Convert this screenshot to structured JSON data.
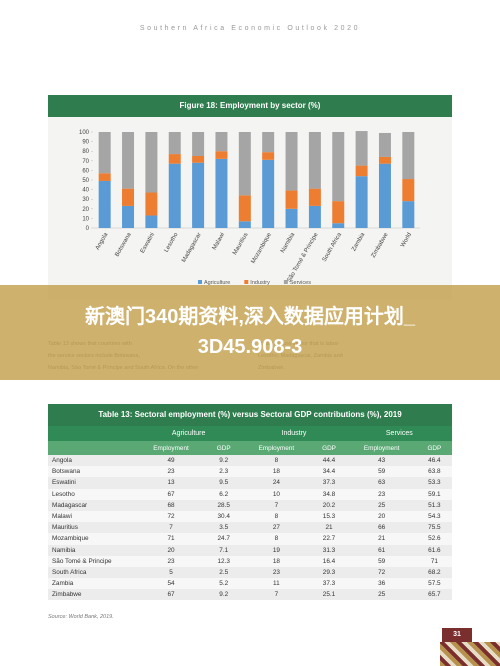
{
  "header": {
    "title": "Southern Africa Economic Outlook 2020"
  },
  "chart_data": {
    "type": "bar",
    "stacked": true,
    "title": "Figure 18: Employment by sector (%)",
    "categories": [
      "Angola",
      "Botswana",
      "Eswatini",
      "Lesotho",
      "Madagascar",
      "Malawi",
      "Mauritius",
      "Mozambique",
      "Namibia",
      "São Tomé & Principe",
      "South Africa",
      "Zambia",
      "Zimbabwe",
      "World"
    ],
    "series": [
      {
        "name": "Agriculture",
        "color": "#5b9bd5",
        "values": [
          49,
          23,
          13,
          67,
          68,
          72,
          7,
          71,
          20,
          23,
          5,
          54,
          67,
          28
        ]
      },
      {
        "name": "Industry",
        "color": "#ed7d31",
        "values": [
          8,
          18,
          24,
          10,
          7,
          8,
          27,
          8,
          19,
          18,
          23,
          11,
          7,
          23
        ]
      },
      {
        "name": "Services",
        "color": "#a5a5a5",
        "values": [
          43,
          59,
          63,
          23,
          25,
          20,
          66,
          21,
          61,
          59,
          72,
          36,
          25,
          49
        ]
      }
    ],
    "ylim": [
      0,
      100
    ],
    "yticks": [
      0,
      10,
      20,
      30,
      40,
      50,
      60,
      70,
      80,
      90,
      100
    ],
    "grid": false,
    "legend": "bottom"
  },
  "body_text": {
    "left": [
      "Table 13 shows that countries with",
      "the service sectors include Botswana,",
      "Namibia, São Tomé & Príncipe and South Africa. On the other"
    ],
    "right": [
      "an agriculture sector that is labor-",
      "Lesotho, Madagascar, Zambia and",
      "Zimbabwe."
    ]
  },
  "banner": {
    "lines": [
      "新澳门340期资料,深入数据应用计划_",
      "3D45.908-3"
    ]
  },
  "table": {
    "title": "Table 13: Sectoral employment (%) versus Sectoral GDP contributions (%), 2019",
    "groups": [
      "Agriculture",
      "Industry",
      "Services"
    ],
    "subheaders": [
      "Employment",
      "GDP",
      "Employment",
      "GDP",
      "Employment",
      "GDP"
    ],
    "rows": [
      [
        "Angola",
        49,
        9.2,
        8,
        44.4,
        43,
        46.4
      ],
      [
        "Botswana",
        23,
        2.3,
        18,
        34.4,
        59,
        63.8
      ],
      [
        "Eswatini",
        13,
        9.5,
        24,
        37.3,
        63,
        53.3
      ],
      [
        "Lesotho",
        67,
        6.2,
        10,
        34.8,
        23,
        59.1
      ],
      [
        "Madagascar",
        68,
        28.5,
        7,
        20.2,
        25,
        51.3
      ],
      [
        "Malawi",
        72,
        30.4,
        8,
        15.3,
        20,
        54.3
      ],
      [
        "Mauritius",
        7,
        3.5,
        27,
        21,
        66,
        75.5
      ],
      [
        "Mozambique",
        71,
        24.7,
        8,
        22.7,
        21,
        52.6
      ],
      [
        "Namibia",
        20,
        7.1,
        19,
        31.3,
        61,
        61.6
      ],
      [
        "São Tomé & Principe",
        23,
        12.3,
        18,
        16.4,
        59,
        71
      ],
      [
        "South Africa",
        5,
        2.5,
        23,
        29.3,
        72,
        68.2
      ],
      [
        "Zambia",
        54,
        5.2,
        11,
        37.3,
        36,
        57.5
      ],
      [
        "Zimbabwe",
        67,
        9.2,
        7,
        25.1,
        25,
        65.7
      ]
    ]
  },
  "source": "Source: World Bank, 2019.",
  "page_number": "31"
}
